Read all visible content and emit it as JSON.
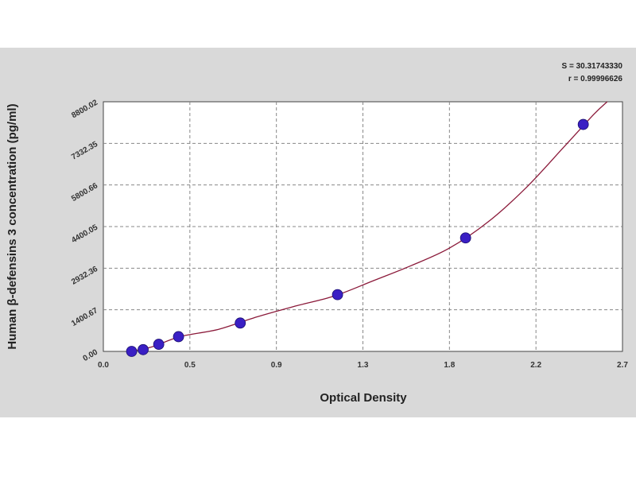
{
  "chart_data": {
    "type": "scatter",
    "xlabel": "Optical Density",
    "ylabel": "Human β-defensins 3 concentration (pg/ml)",
    "x_ticks": [
      "0.0",
      "0.5",
      "0.9",
      "1.3",
      "1.8",
      "2.2",
      "2.7"
    ],
    "x_tick_values": [
      0.0,
      0.45,
      0.9,
      1.35,
      1.8,
      2.25,
      2.7
    ],
    "y_ticks": [
      "0.00",
      "1400.67",
      "2932.36",
      "4400.05",
      "5800.66",
      "7332.35",
      "8800.02"
    ],
    "xlim": [
      0.0,
      2.7
    ],
    "ylim": [
      0.0,
      8800.02
    ],
    "grid": true,
    "stats": [
      {
        "label": "S",
        "value": "30.31743330"
      },
      {
        "label": "r",
        "value": "0.99996626"
      }
    ],
    "points": [
      {
        "x": 0.147,
        "y": 0
      },
      {
        "x": 0.207,
        "y": 62
      },
      {
        "x": 0.288,
        "y": 250
      },
      {
        "x": 0.391,
        "y": 520
      },
      {
        "x": 0.712,
        "y": 1000
      },
      {
        "x": 1.218,
        "y": 2000
      },
      {
        "x": 1.884,
        "y": 4000
      },
      {
        "x": 2.496,
        "y": 8000
      }
    ],
    "fit_curve": {
      "x": [
        0.14,
        0.25,
        0.4,
        0.6,
        0.8,
        1.0,
        1.2,
        1.4,
        1.6,
        1.8,
        2.0,
        2.2,
        2.4,
        2.55,
        2.62
      ],
      "y": [
        0,
        155,
        520,
        780,
        1220,
        1600,
        1950,
        2480,
        3020,
        3640,
        4560,
        5780,
        7240,
        8350,
        8800
      ]
    },
    "colors": {
      "marker": "#3a1fc4",
      "curve": "#8b1a3a",
      "grid": "#888888",
      "plot_bg": "#ffffff",
      "frame_bg": "#d9d9d9"
    }
  }
}
